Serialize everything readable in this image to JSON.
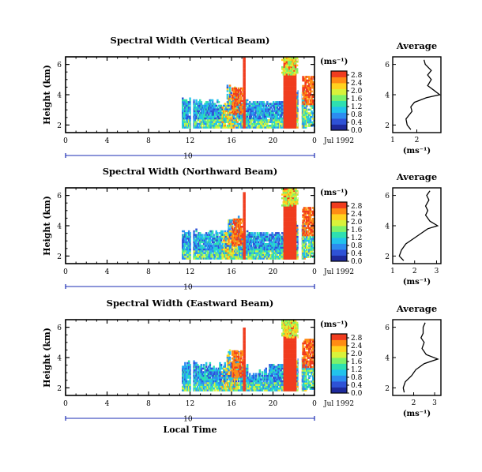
{
  "chart_data": {
    "type": "heatmap",
    "local_time_label": "Local Time",
    "x_ticks": [
      "0",
      "4",
      "8",
      "12",
      "16",
      "20",
      "0"
    ],
    "xlim": [
      0,
      24
    ],
    "date_marker": "10",
    "date_label": "Jul 1992",
    "colorbar_unit": "(ms⁻¹)",
    "colorbar_ticks": [
      "0.0",
      "0.4",
      "0.8",
      "1.2",
      "1.6",
      "2.0",
      "2.4",
      "2.8"
    ],
    "colorbar_range": [
      0,
      3.0
    ],
    "y_label": "Height (km)",
    "y_ticks": [
      "2",
      "4",
      "6"
    ],
    "ylim": [
      1.5,
      6.5
    ],
    "average_title": "Average",
    "average_xlabel": "(ms⁻¹)",
    "panels": [
      {
        "title": "Spectral Width (Vertical Beam)",
        "avg_xticks": [
          "1",
          "2"
        ],
        "avg_xlim": [
          1,
          3
        ],
        "average_profile": [
          {
            "h": 1.7,
            "v": 1.75
          },
          {
            "h": 2.0,
            "v": 1.6
          },
          {
            "h": 2.4,
            "v": 1.55
          },
          {
            "h": 2.9,
            "v": 1.8
          },
          {
            "h": 3.2,
            "v": 1.75
          },
          {
            "h": 3.5,
            "v": 1.9
          },
          {
            "h": 3.8,
            "v": 2.4
          },
          {
            "h": 4.0,
            "v": 2.95
          },
          {
            "h": 4.3,
            "v": 2.7
          },
          {
            "h": 4.6,
            "v": 2.45
          },
          {
            "h": 5.0,
            "v": 2.6
          },
          {
            "h": 5.3,
            "v": 2.45
          },
          {
            "h": 5.6,
            "v": 2.6
          },
          {
            "h": 6.0,
            "v": 2.35
          },
          {
            "h": 6.3,
            "v": 2.3
          }
        ]
      },
      {
        "title": "Spectral Width (Northward Beam)",
        "avg_xticks": [
          "1",
          "2",
          "3"
        ],
        "avg_xlim": [
          1,
          3.2
        ],
        "average_profile": [
          {
            "h": 1.7,
            "v": 1.5
          },
          {
            "h": 2.0,
            "v": 1.3
          },
          {
            "h": 2.4,
            "v": 1.4
          },
          {
            "h": 2.8,
            "v": 1.6
          },
          {
            "h": 3.2,
            "v": 2.0
          },
          {
            "h": 3.5,
            "v": 2.3
          },
          {
            "h": 3.8,
            "v": 2.6
          },
          {
            "h": 4.0,
            "v": 3.05
          },
          {
            "h": 4.3,
            "v": 2.7
          },
          {
            "h": 4.7,
            "v": 2.5
          },
          {
            "h": 5.0,
            "v": 2.6
          },
          {
            "h": 5.3,
            "v": 2.5
          },
          {
            "h": 5.7,
            "v": 2.65
          },
          {
            "h": 6.0,
            "v": 2.55
          },
          {
            "h": 6.3,
            "v": 2.7
          }
        ]
      },
      {
        "title": "Spectral Width (Eastward Beam)",
        "avg_xticks": [
          "2",
          "3"
        ],
        "avg_xlim": [
          1,
          3.3
        ],
        "average_profile": [
          {
            "h": 1.7,
            "v": 1.55
          },
          {
            "h": 2.0,
            "v": 1.5
          },
          {
            "h": 2.4,
            "v": 1.6
          },
          {
            "h": 2.8,
            "v": 1.9
          },
          {
            "h": 3.2,
            "v": 2.1
          },
          {
            "h": 3.6,
            "v": 2.5
          },
          {
            "h": 3.9,
            "v": 3.15
          },
          {
            "h": 4.2,
            "v": 2.6
          },
          {
            "h": 4.6,
            "v": 2.4
          },
          {
            "h": 5.0,
            "v": 2.5
          },
          {
            "h": 5.3,
            "v": 2.35
          },
          {
            "h": 5.6,
            "v": 2.45
          },
          {
            "h": 6.0,
            "v": 2.45
          },
          {
            "h": 6.3,
            "v": 2.55
          }
        ]
      }
    ]
  },
  "colors": {
    "colormap": [
      "#1e2a9c",
      "#2f52d6",
      "#2d8cf0",
      "#22c3ec",
      "#2ee0b0",
      "#7df26a",
      "#d9f23a",
      "#ffd21e",
      "#ff8c14",
      "#f03c1e"
    ],
    "axis_date_line": "#1a2bb3"
  }
}
